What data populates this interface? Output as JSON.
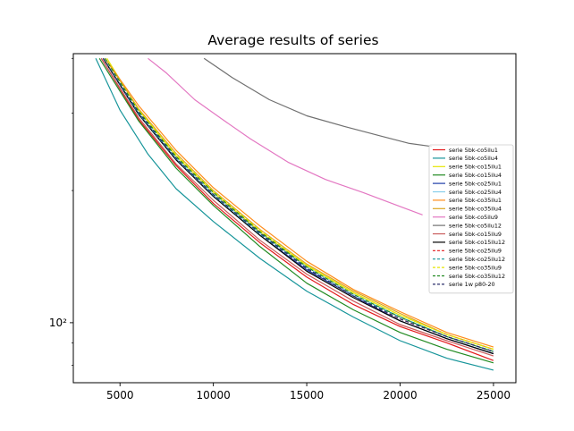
{
  "chart_data": {
    "type": "line",
    "title": "Average results of series",
    "xlabel": "",
    "ylabel": "",
    "xlim": [
      2500,
      26200
    ],
    "ylim": [
      73,
      410
    ],
    "yscale": "log",
    "grid": false,
    "legend_position": "right",
    "x_ticks": [
      5000,
      10000,
      15000,
      20000,
      25000
    ],
    "x_tick_labels": [
      "5000",
      "10000",
      "15000",
      "20000",
      "25000"
    ],
    "y_ticks": [
      100
    ],
    "y_tick_labels": [
      "10²"
    ],
    "series": [
      {
        "name": "serie 5bk-co5ilu1",
        "color": "#e41a1c",
        "dash": "solid",
        "x": [
          4000,
          6000,
          8000,
          10000,
          12500,
          15000,
          17500,
          20000,
          22500,
          25000
        ],
        "y": [
          400,
          290,
          228,
          187,
          152,
          127,
          110,
          98,
          90,
          82
        ]
      },
      {
        "name": "serie 5bk-co5ilu4",
        "color": "#17959a",
        "dash": "solid",
        "x": [
          3700,
          5000,
          6500,
          8000,
          10000,
          12500,
          15000,
          17500,
          20000,
          22500,
          25000
        ],
        "y": [
          400,
          305,
          242,
          202,
          170,
          140,
          118,
          103,
          91,
          83,
          78
        ]
      },
      {
        "name": "serie 5bk-co15ilu1",
        "color": "#e6e600",
        "dash": "solid",
        "x": [
          4300,
          6000,
          8000,
          10000,
          12500,
          15000,
          17500,
          20000,
          22500,
          25000
        ],
        "y": [
          400,
          305,
          240,
          198,
          161,
          135,
          117,
          104,
          94,
          87
        ]
      },
      {
        "name": "serie 5bk-co15ilu4",
        "color": "#228b22",
        "dash": "solid",
        "x": [
          3900,
          6000,
          8000,
          10000,
          12500,
          15000,
          17500,
          20000,
          22500,
          25000
        ],
        "y": [
          400,
          288,
          225,
          185,
          149,
          123,
          107,
          95,
          87,
          81
        ]
      },
      {
        "name": "serie 5bk-co25ilu1",
        "color": "#1f3da8",
        "dash": "solid",
        "x": [
          4100,
          6000,
          8000,
          10000,
          12500,
          15000,
          17500,
          20000,
          22500,
          25000
        ],
        "y": [
          400,
          298,
          235,
          194,
          158,
          132,
          115,
          101,
          92,
          85
        ]
      },
      {
        "name": "serie 5bk-co25ilu4",
        "color": "#87ceeb",
        "dash": "solid",
        "x": [
          4100,
          6000,
          8000,
          10000,
          12500,
          15000,
          17500,
          20000,
          22500,
          25000
        ],
        "y": [
          400,
          300,
          237,
          196,
          160,
          134,
          116,
          103,
          93,
          86
        ]
      },
      {
        "name": "serie 5bk-co35ilu1",
        "color": "#ff8c1a",
        "dash": "solid",
        "x": [
          4200,
          6000,
          8000,
          10000,
          12500,
          15000,
          17500,
          20000,
          22500,
          25000
        ],
        "y": [
          400,
          312,
          247,
          203,
          166,
          138,
          119,
          106,
          95,
          88
        ]
      },
      {
        "name": "serie 5bk-co35ilu4",
        "color": "#daa520",
        "dash": "solid",
        "x": [
          4200,
          6000,
          8000,
          10000,
          12500,
          15000,
          17500,
          20000,
          22500,
          25000
        ],
        "y": [
          400,
          307,
          243,
          200,
          163,
          136,
          118,
          105,
          94,
          87
        ]
      },
      {
        "name": "serie 5bk-co5ilu9",
        "color": "#e377c2",
        "dash": "solid",
        "x": [
          6500,
          7500,
          9000,
          10500,
          12000,
          14000,
          16000,
          18000,
          20000,
          21200
        ],
        "y": [
          400,
          370,
          322,
          290,
          262,
          232,
          212,
          198,
          184,
          176
        ]
      },
      {
        "name": "serie 5bk-co5ilu12",
        "color": "#707070",
        "dash": "solid",
        "x": [
          9500,
          11000,
          13000,
          15000,
          17000,
          19000,
          20500,
          21700
        ],
        "y": [
          400,
          362,
          322,
          296,
          280,
          266,
          256,
          252
        ]
      },
      {
        "name": "serie 5bk-co15ilu9",
        "color": "#c85a5a",
        "dash": "solid",
        "x": [
          4000,
          6000,
          8000,
          10000,
          12500,
          15000,
          17500,
          20000,
          22500,
          25000
        ],
        "y": [
          400,
          293,
          230,
          190,
          154,
          129,
          112,
          99,
          91,
          84
        ]
      },
      {
        "name": "serie 5bk-co15ilu12",
        "color": "#000000",
        "dash": "solid",
        "x": [
          4100,
          6000,
          8000,
          10000,
          12500,
          15000,
          17500,
          20000,
          22500,
          25000
        ],
        "y": [
          400,
          298,
          235,
          194,
          158,
          131,
          114,
          101,
          92,
          85
        ]
      },
      {
        "name": "serie 5bk-co25ilu9",
        "color": "#e41a1c",
        "dash": "dashed",
        "x": [
          4100,
          6000,
          8000,
          10000,
          12500,
          15000,
          17500,
          20000,
          22500,
          25000
        ],
        "y": [
          400,
          300,
          236,
          195,
          159,
          133,
          115,
          102,
          93,
          86
        ]
      },
      {
        "name": "serie 5bk-co25ilu12",
        "color": "#17959a",
        "dash": "dashed",
        "x": [
          4100,
          6000,
          8000,
          10000,
          12500,
          15000,
          17500,
          20000,
          22500,
          25000
        ],
        "y": [
          400,
          299,
          236,
          195,
          159,
          133,
          115,
          103,
          93,
          86
        ]
      },
      {
        "name": "serie 5bk-co35ilu9",
        "color": "#e6e600",
        "dash": "dashed",
        "x": [
          4200,
          6000,
          8000,
          10000,
          12500,
          15000,
          17500,
          20000,
          22500,
          25000
        ],
        "y": [
          400,
          305,
          241,
          199,
          162,
          135,
          117,
          104,
          94,
          87
        ]
      },
      {
        "name": "serie 5bk-co35ilu12",
        "color": "#228b22",
        "dash": "dashed",
        "x": [
          4200,
          6000,
          8000,
          10000,
          12500,
          15000,
          17500,
          20000,
          22500,
          25000
        ],
        "y": [
          400,
          303,
          239,
          198,
          161,
          134,
          116,
          103,
          93,
          86
        ]
      },
      {
        "name": "serie 1w p80-20",
        "color": "#2b2f6b",
        "dash": "dashed",
        "x": [
          4100,
          6000,
          8000,
          10000,
          12500,
          15000,
          17500,
          20000,
          22500,
          25000
        ],
        "y": [
          400,
          301,
          237,
          196,
          160,
          133,
          115,
          102,
          93,
          86
        ]
      }
    ]
  }
}
